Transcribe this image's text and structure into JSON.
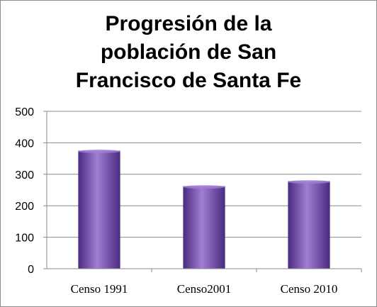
{
  "chart_data": {
    "type": "bar",
    "title_lines": [
      "Progresión de la",
      "población de San",
      "Francisco de Santa Fe"
    ],
    "categories": [
      "Censo 1991",
      "Censo2001",
      "Censo 2010"
    ],
    "values": [
      375,
      262,
      278
    ],
    "xlabel": "",
    "ylabel": "",
    "ylim": [
      0,
      500
    ],
    "yticks": [
      0,
      100,
      200,
      300,
      400,
      500
    ],
    "grid": true,
    "legend": "none",
    "colors": {
      "bar_light": "#a07fd4",
      "bar_mid": "#7a55b8",
      "bar_dark": "#4a2a80",
      "grid": "#8c8c8c",
      "axis": "#8c8c8c"
    }
  }
}
